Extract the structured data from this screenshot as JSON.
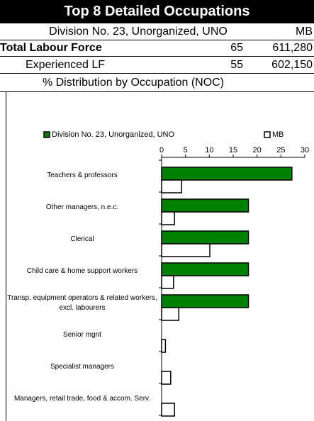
{
  "header": {
    "title": "Top 8 Detailed Occupations",
    "region": "Division No. 23, Unorganized, UNO",
    "province": "MB",
    "rows": [
      [
        "Total Labour Force",
        "65",
        "611,280"
      ],
      [
        "Experienced LF",
        "55",
        "602,150"
      ]
    ],
    "section": "% Distribution by Occupation (NOC)"
  },
  "chart_data": {
    "type": "hbar",
    "categories": [
      "Teachers & professors",
      "Other managers, n.e.c.",
      "Clerical",
      "Child care & home support workers",
      "Transp. equipment operators & related workers, excl. labourers",
      "Senior mgnt",
      "Specialist managers",
      "Managers, retail trade, food & accom. Serv."
    ],
    "series": [
      {
        "name": "Division No. 23, Unorganized, UNO",
        "color": "#008000",
        "values": [
          27.3,
          18.2,
          18.2,
          18.2,
          18.2,
          0,
          0,
          0
        ]
      },
      {
        "name": "MB",
        "color": "#ffffff",
        "values": [
          4.2,
          2.7,
          10.1,
          2.5,
          3.6,
          0.8,
          1.9,
          2.7
        ]
      }
    ],
    "xlim": [
      0,
      30
    ],
    "xticks": [
      0,
      5,
      10,
      15,
      20,
      25,
      30
    ],
    "legend": "top"
  }
}
